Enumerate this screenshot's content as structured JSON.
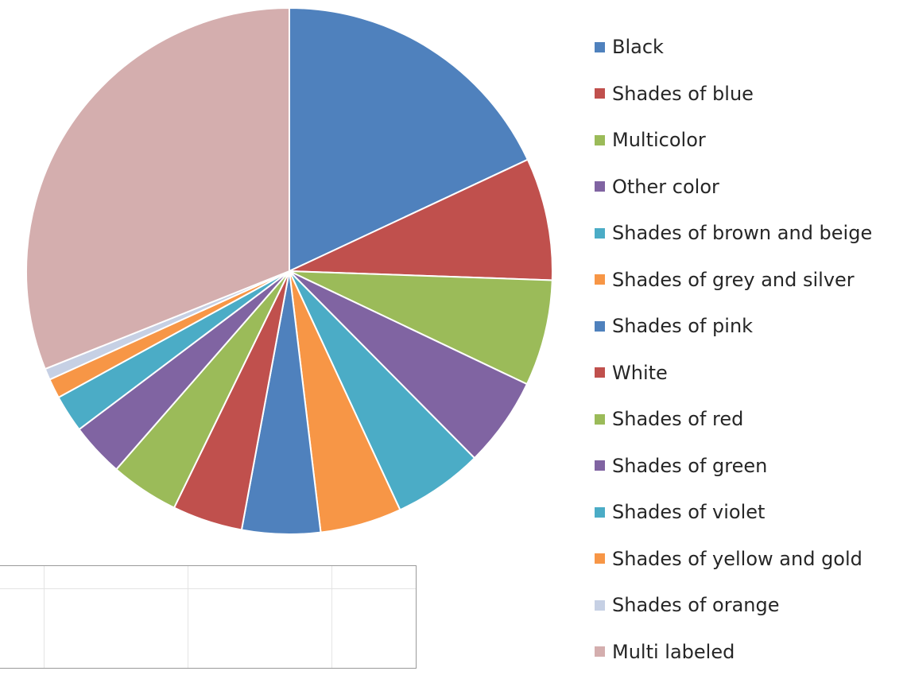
{
  "chart_data": {
    "type": "pie",
    "title": "",
    "start_angle_deg": 0,
    "direction": "clockwise",
    "legend_position": "right",
    "slices": [
      {
        "label": "Black",
        "value": 18.0,
        "color": "#4F81BD"
      },
      {
        "label": "Shades of blue",
        "value": 7.5,
        "color": "#C0504D"
      },
      {
        "label": "Multicolor",
        "value": 6.5,
        "color": "#9BBB59"
      },
      {
        "label": "Other color",
        "value": 5.5,
        "color": "#8064A2"
      },
      {
        "label": "Shades of brown and beige",
        "value": 5.5,
        "color": "#4BACC6"
      },
      {
        "label": "Shades of grey and silver",
        "value": 5.0,
        "color": "#F79646"
      },
      {
        "label": "Shades of pink",
        "value": 4.8,
        "color": "#4F81BD"
      },
      {
        "label": "White",
        "value": 4.3,
        "color": "#C0504D"
      },
      {
        "label": "Shades of red",
        "value": 4.2,
        "color": "#9BBB59"
      },
      {
        "label": "Shades of green",
        "value": 3.3,
        "color": "#8064A2"
      },
      {
        "label": "Shades of violet",
        "value": 2.3,
        "color": "#4BACC6"
      },
      {
        "label": "Shades of yellow and gold",
        "value": 1.2,
        "color": "#F79646"
      },
      {
        "label": "Shades of orange",
        "value": 0.7,
        "color": "#C6D0E4"
      },
      {
        "label": "Multi labeled",
        "value": 31.0,
        "color": "#D4AEAE"
      }
    ]
  }
}
